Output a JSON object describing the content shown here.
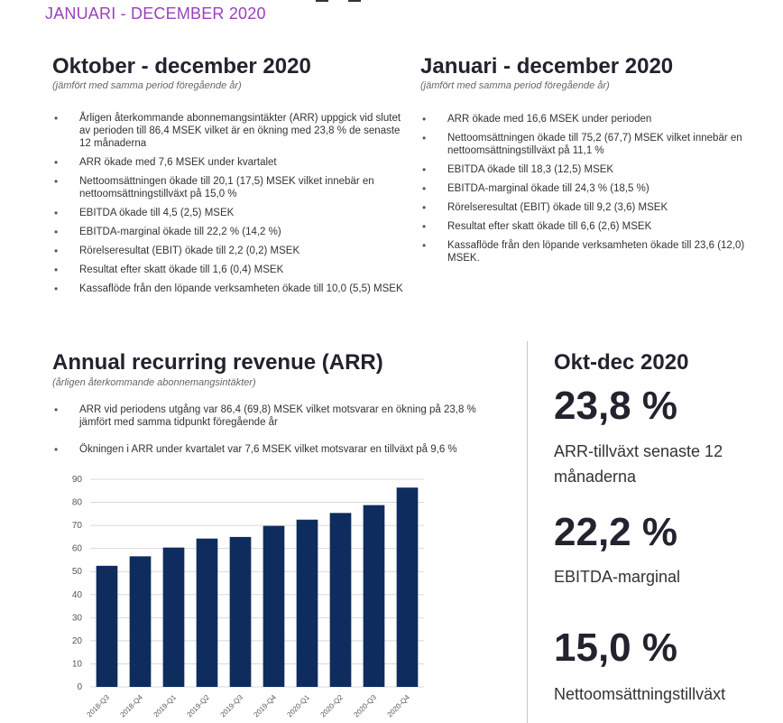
{
  "header": {
    "period": "JANUARI - DECEMBER 2020"
  },
  "quarter": {
    "title": "Oktober - december 2020",
    "subtitle": "(jämfört med samma period föregående år)",
    "bullets": [
      "Årligen återkommande abonnemangsintäkter (ARR) uppgick vid slutet av perioden till 86,4 MSEK vilket är en ökning med 23,8 % de senaste 12 månaderna",
      "ARR ökade med 7,6 MSEK under kvartalet",
      "Nettoomsättningen ökade till 20,1 (17,5) MSEK vilket innebär en nettoomsättningstillväxt på 15,0 %",
      "EBITDA ökade till 4,5 (2,5) MSEK",
      "EBITDA-marginal ökade till 22,2 % (14,2 %)",
      "Rörelseresultat (EBIT) ökade till 2,2 (0,2) MSEK",
      "Resultat efter skatt ökade till 1,6 (0,4) MSEK",
      "Kassaflöde från den löpande verksamheten ökade till 10,0 (5,5) MSEK"
    ]
  },
  "year": {
    "title": "Januari - december 2020",
    "subtitle": "(jämfört med samma period föregående år)",
    "bullets": [
      "ARR ökade med 16,6 MSEK under perioden",
      "Nettoomsättningen ökade till 75,2 (67,7) MSEK vilket innebär en nettoomsättningstillväxt på 11,1 %",
      "EBITDA ökade till 18,3 (12,5) MSEK",
      "EBITDA-marginal ökade till 24,3 % (18,5 %)",
      "Rörelseresultat (EBIT) ökade till 9,2 (3,6) MSEK",
      "Resultat efter skatt ökade till 6,6 (2,6) MSEK",
      "Kassaflöde från den löpande verksamheten ökade till 23,6 (12,0) MSEK."
    ]
  },
  "arr": {
    "title": "Annual recurring revenue (ARR)",
    "subtitle": "(årligen återkommande abonnemangsintäkter)",
    "bullets": [
      "ARR vid periodens utgång var 86,4 (69,8) MSEK vilket motsvarar en ökning på 23,8 % jämfört med samma tidpunkt föregående år",
      "Ökningen i ARR under kvartalet var 7,6 MSEK vilket motsvarar en tillväxt på 9,6 %"
    ]
  },
  "kpi": {
    "title": "Okt-dec 2020",
    "items": [
      {
        "value": "23,8 %",
        "label": "ARR-tillväxt senaste 12 månaderna"
      },
      {
        "value": "22,2 %",
        "label": "EBITDA-marginal"
      },
      {
        "value": "15,0 %",
        "label": "Nettoomsättningstillväxt"
      }
    ]
  },
  "chart_data": {
    "type": "bar",
    "categories": [
      "2018-Q3",
      "2018-Q4",
      "2019-Q1",
      "2019-Q2",
      "2019-Q3",
      "2019-Q4",
      "2020-Q1",
      "2020-Q2",
      "2020-Q3",
      "2020-Q4"
    ],
    "values": [
      52.5,
      56.6,
      60.4,
      64.3,
      65.0,
      69.8,
      72.5,
      75.4,
      78.8,
      86.4
    ],
    "yticks": [
      0,
      10,
      20,
      30,
      40,
      50,
      60,
      70,
      80,
      90
    ],
    "ylim": [
      0,
      90
    ],
    "grid": true,
    "bar_color": "#0f2c5e",
    "title": "",
    "xlabel": "",
    "ylabel": ""
  }
}
